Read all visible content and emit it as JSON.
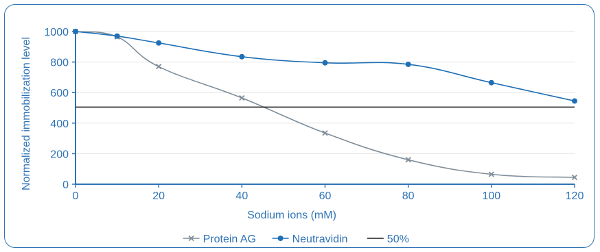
{
  "chart_data": {
    "type": "line",
    "xlabel": "Sodium ions (mM)",
    "ylabel": "Normalized immobilization level",
    "xlim": [
      0,
      120
    ],
    "ylim": [
      0,
      1000
    ],
    "x_ticks": [
      "0",
      "20",
      "40",
      "60",
      "80",
      "100",
      "120"
    ],
    "y_ticks": [
      "0",
      "200",
      "400",
      "600",
      "800",
      "1000"
    ],
    "grid": true,
    "legend_position": "bottom-center",
    "series": [
      {
        "name": "Protein AG",
        "marker": "x",
        "color": "#7f8e9a",
        "x": [
          0,
          10,
          20,
          40,
          60,
          80,
          100,
          120
        ],
        "y": [
          1000,
          965,
          770,
          565,
          335,
          160,
          65,
          45
        ]
      },
      {
        "name": "Neutravidin",
        "marker": "circle",
        "color": "#1f6fb5",
        "x": [
          0,
          10,
          20,
          40,
          60,
          80,
          100,
          120
        ],
        "y": [
          1000,
          970,
          925,
          835,
          795,
          785,
          665,
          545
        ]
      },
      {
        "name": "50%",
        "marker": "none",
        "color": "#1a1a1a",
        "x": [
          0,
          120
        ],
        "y": [
          505,
          505
        ]
      }
    ],
    "colors": {
      "axis": "#2f73b5",
      "text": "#2f73b5",
      "grid": "#e3e3e3",
      "frame": "#2f73b5"
    }
  }
}
